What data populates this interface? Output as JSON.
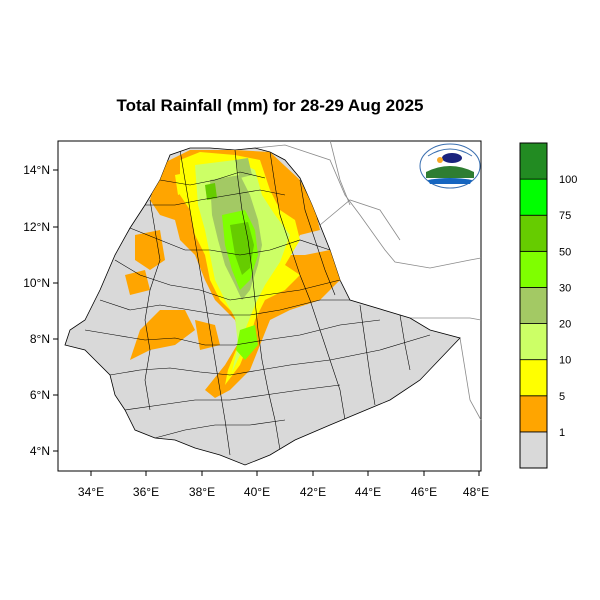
{
  "title": "Total Rainfall (mm) for 28-29 Aug 2025",
  "map": {
    "lon_range": [
      33,
      48
    ],
    "lat_range": [
      3.2,
      15
    ],
    "x_ticks": [
      "34°E",
      "36°E",
      "38°E",
      "40°E",
      "42°E",
      "44°E",
      "46°E",
      "48°E"
    ],
    "y_ticks": [
      "14°N",
      "12°N",
      "10°N",
      "8°N",
      "6°N",
      "4°N"
    ],
    "land_color": "#d9d9d9"
  },
  "colorbar": {
    "levels": [
      "1",
      "5",
      "10",
      "20",
      "30",
      "50",
      "75",
      "100"
    ],
    "colors": [
      "#d9d9d9",
      "#ffa500",
      "#ffff00",
      "#ccff66",
      "#a3c964",
      "#7fff00",
      "#66cc00",
      "#00ff00",
      "#228b22"
    ]
  },
  "logo": {
    "icon": "ethiopian-meteorology-institute-logo"
  }
}
